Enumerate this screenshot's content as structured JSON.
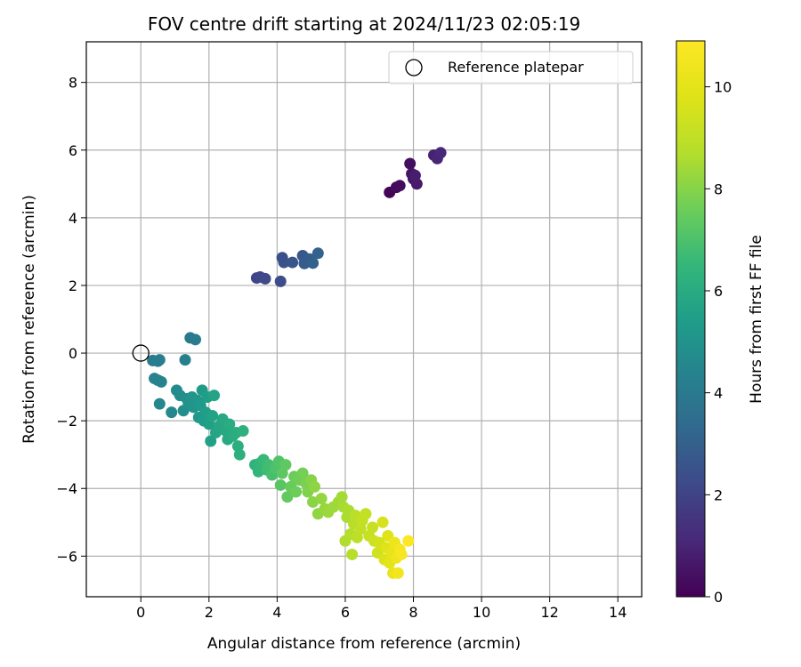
{
  "chart_data": {
    "type": "scatter",
    "title": "FOV centre drift starting at 2024/11/23 02:05:19",
    "xlabel": "Angular distance from reference (arcmin)",
    "ylabel": "Rotation from reference (arcmin)",
    "xlim": [
      -1.6,
      14.7
    ],
    "ylim": [
      -7.2,
      9.2
    ],
    "xticks": [
      0,
      2,
      4,
      6,
      8,
      10,
      12,
      14
    ],
    "yticks": [
      -6,
      -4,
      -2,
      0,
      2,
      4,
      6,
      8
    ],
    "xtick_labels": [
      "0",
      "2",
      "4",
      "6",
      "8",
      "10",
      "12",
      "14"
    ],
    "ytick_labels": [
      "−6",
      "−4",
      "−2",
      "0",
      "2",
      "4",
      "6",
      "8"
    ],
    "grid": true,
    "colormap": "viridis",
    "colorbar": {
      "label": "Hours from first FF file",
      "range": [
        0,
        10.9
      ],
      "ticks": [
        0,
        2,
        4,
        6,
        8,
        10
      ],
      "tick_labels": [
        "0",
        "2",
        "4",
        "6",
        "8",
        "10"
      ]
    },
    "legend": {
      "placement": "top-right",
      "label": "Reference platepar"
    },
    "reference_point": {
      "x": 0,
      "y": 0
    },
    "points": [
      {
        "x": 7.3,
        "y": 4.75,
        "h": 0.1
      },
      {
        "x": 7.5,
        "y": 4.9,
        "h": 0.2
      },
      {
        "x": 7.6,
        "y": 4.95,
        "h": 0.3
      },
      {
        "x": 7.9,
        "y": 5.6,
        "h": 0.4
      },
      {
        "x": 7.95,
        "y": 5.3,
        "h": 0.5
      },
      {
        "x": 8.0,
        "y": 5.15,
        "h": 0.6
      },
      {
        "x": 8.1,
        "y": 5.0,
        "h": 0.7
      },
      {
        "x": 8.05,
        "y": 5.25,
        "h": 0.8
      },
      {
        "x": 8.6,
        "y": 5.85,
        "h": 0.9
      },
      {
        "x": 8.7,
        "y": 5.75,
        "h": 1.0
      },
      {
        "x": 8.8,
        "y": 5.92,
        "h": 1.1
      },
      {
        "x": 3.4,
        "y": 2.22,
        "h": 2.0
      },
      {
        "x": 3.5,
        "y": 2.25,
        "h": 2.1
      },
      {
        "x": 3.65,
        "y": 2.2,
        "h": 2.2
      },
      {
        "x": 4.1,
        "y": 2.12,
        "h": 2.3
      },
      {
        "x": 4.15,
        "y": 2.82,
        "h": 2.4
      },
      {
        "x": 4.2,
        "y": 2.68,
        "h": 2.5
      },
      {
        "x": 4.45,
        "y": 2.68,
        "h": 2.6
      },
      {
        "x": 4.75,
        "y": 2.88,
        "h": 2.7
      },
      {
        "x": 4.8,
        "y": 2.65,
        "h": 2.8
      },
      {
        "x": 4.95,
        "y": 2.78,
        "h": 2.9
      },
      {
        "x": 5.05,
        "y": 2.66,
        "h": 3.0
      },
      {
        "x": 5.2,
        "y": 2.95,
        "h": 3.1
      },
      {
        "x": 1.45,
        "y": 0.45,
        "h": 4.0
      },
      {
        "x": 1.6,
        "y": 0.4,
        "h": 4.05
      },
      {
        "x": 0.35,
        "y": -0.22,
        "h": 4.1
      },
      {
        "x": 0.5,
        "y": -0.24,
        "h": 4.15
      },
      {
        "x": 0.55,
        "y": -0.2,
        "h": 4.2
      },
      {
        "x": 1.3,
        "y": -0.2,
        "h": 4.25
      },
      {
        "x": 0.4,
        "y": -0.75,
        "h": 4.3
      },
      {
        "x": 0.5,
        "y": -0.8,
        "h": 4.35
      },
      {
        "x": 0.6,
        "y": -0.85,
        "h": 4.4
      },
      {
        "x": 0.55,
        "y": -1.5,
        "h": 4.5
      },
      {
        "x": 0.9,
        "y": -1.75,
        "h": 4.6
      },
      {
        "x": 1.05,
        "y": -1.1,
        "h": 4.7
      },
      {
        "x": 1.15,
        "y": -1.25,
        "h": 4.8
      },
      {
        "x": 1.25,
        "y": -1.7,
        "h": 4.85
      },
      {
        "x": 1.35,
        "y": -1.35,
        "h": 4.9
      },
      {
        "x": 1.4,
        "y": -1.5,
        "h": 5.0
      },
      {
        "x": 1.5,
        "y": -1.3,
        "h": 5.05
      },
      {
        "x": 1.55,
        "y": -1.6,
        "h": 5.1
      },
      {
        "x": 1.65,
        "y": -1.4,
        "h": 5.15
      },
      {
        "x": 1.7,
        "y": -1.9,
        "h": 5.2
      },
      {
        "x": 1.75,
        "y": -1.55,
        "h": 5.3
      },
      {
        "x": 1.8,
        "y": -1.1,
        "h": 5.35
      },
      {
        "x": 1.85,
        "y": -2.0,
        "h": 5.4
      },
      {
        "x": 1.9,
        "y": -1.75,
        "h": 5.45
      },
      {
        "x": 1.95,
        "y": -1.3,
        "h": 5.5
      },
      {
        "x": 2.0,
        "y": -2.1,
        "h": 5.55
      },
      {
        "x": 2.05,
        "y": -2.6,
        "h": 5.6
      },
      {
        "x": 2.1,
        "y": -1.85,
        "h": 5.65
      },
      {
        "x": 2.15,
        "y": -1.25,
        "h": 5.7
      },
      {
        "x": 2.2,
        "y": -2.35,
        "h": 5.75
      },
      {
        "x": 2.3,
        "y": -2.15,
        "h": 5.8
      },
      {
        "x": 2.4,
        "y": -1.95,
        "h": 5.85
      },
      {
        "x": 2.5,
        "y": -2.3,
        "h": 5.9
      },
      {
        "x": 2.55,
        "y": -2.55,
        "h": 5.95
      },
      {
        "x": 2.6,
        "y": -2.1,
        "h": 6.0
      },
      {
        "x": 2.7,
        "y": -2.45,
        "h": 6.05
      },
      {
        "x": 2.8,
        "y": -2.35,
        "h": 6.1
      },
      {
        "x": 2.85,
        "y": -2.75,
        "h": 6.15
      },
      {
        "x": 2.9,
        "y": -3.0,
        "h": 6.2
      },
      {
        "x": 3.0,
        "y": -2.3,
        "h": 6.25
      },
      {
        "x": 3.35,
        "y": -3.3,
        "h": 6.3
      },
      {
        "x": 3.45,
        "y": -3.5,
        "h": 6.4
      },
      {
        "x": 3.5,
        "y": -3.25,
        "h": 6.5
      },
      {
        "x": 3.6,
        "y": -3.15,
        "h": 6.6
      },
      {
        "x": 3.7,
        "y": -3.45,
        "h": 6.7
      },
      {
        "x": 3.75,
        "y": -3.3,
        "h": 6.8
      },
      {
        "x": 3.85,
        "y": -3.6,
        "h": 6.9
      },
      {
        "x": 3.95,
        "y": -3.4,
        "h": 7.0
      },
      {
        "x": 4.05,
        "y": -3.2,
        "h": 7.1
      },
      {
        "x": 4.1,
        "y": -3.9,
        "h": 7.2
      },
      {
        "x": 4.15,
        "y": -3.55,
        "h": 7.3
      },
      {
        "x": 4.25,
        "y": -3.3,
        "h": 7.35
      },
      {
        "x": 4.3,
        "y": -4.25,
        "h": 7.4
      },
      {
        "x": 4.4,
        "y": -3.95,
        "h": 7.5
      },
      {
        "x": 4.5,
        "y": -3.65,
        "h": 7.55
      },
      {
        "x": 4.55,
        "y": -4.1,
        "h": 7.6
      },
      {
        "x": 4.65,
        "y": -3.75,
        "h": 7.65
      },
      {
        "x": 4.75,
        "y": -3.55,
        "h": 7.7
      },
      {
        "x": 4.85,
        "y": -3.85,
        "h": 7.8
      },
      {
        "x": 4.9,
        "y": -4.1,
        "h": 7.9
      },
      {
        "x": 5.0,
        "y": -3.75,
        "h": 8.0
      },
      {
        "x": 5.05,
        "y": -4.4,
        "h": 8.05
      },
      {
        "x": 5.1,
        "y": -3.95,
        "h": 8.1
      },
      {
        "x": 5.2,
        "y": -4.75,
        "h": 8.15
      },
      {
        "x": 5.3,
        "y": -4.3,
        "h": 8.2
      },
      {
        "x": 5.4,
        "y": -4.6,
        "h": 8.25
      },
      {
        "x": 5.5,
        "y": -4.7,
        "h": 8.3
      },
      {
        "x": 5.65,
        "y": -4.55,
        "h": 8.35
      },
      {
        "x": 5.8,
        "y": -4.4,
        "h": 8.4
      },
      {
        "x": 5.9,
        "y": -4.25,
        "h": 8.45
      },
      {
        "x": 5.95,
        "y": -4.55,
        "h": 8.5
      },
      {
        "x": 6.05,
        "y": -4.85,
        "h": 8.55
      },
      {
        "x": 6.1,
        "y": -4.65,
        "h": 8.6
      },
      {
        "x": 6.0,
        "y": -5.55,
        "h": 8.65
      },
      {
        "x": 6.15,
        "y": -5.35,
        "h": 8.7
      },
      {
        "x": 6.2,
        "y": -5.95,
        "h": 8.75
      },
      {
        "x": 6.25,
        "y": -5.05,
        "h": 8.8
      },
      {
        "x": 6.3,
        "y": -4.8,
        "h": 8.85
      },
      {
        "x": 6.35,
        "y": -5.45,
        "h": 8.9
      },
      {
        "x": 6.45,
        "y": -5.2,
        "h": 9.0
      },
      {
        "x": 6.5,
        "y": -4.95,
        "h": 9.05
      },
      {
        "x": 6.6,
        "y": -4.75,
        "h": 9.1
      },
      {
        "x": 6.7,
        "y": -5.4,
        "h": 9.15
      },
      {
        "x": 6.8,
        "y": -5.15,
        "h": 9.2
      },
      {
        "x": 6.85,
        "y": -5.55,
        "h": 9.3
      },
      {
        "x": 6.95,
        "y": -5.9,
        "h": 9.4
      },
      {
        "x": 7.0,
        "y": -5.6,
        "h": 9.5
      },
      {
        "x": 7.1,
        "y": -5.0,
        "h": 9.6
      },
      {
        "x": 7.15,
        "y": -6.1,
        "h": 9.7
      },
      {
        "x": 7.2,
        "y": -5.75,
        "h": 9.8
      },
      {
        "x": 7.25,
        "y": -5.4,
        "h": 9.9
      },
      {
        "x": 7.3,
        "y": -6.2,
        "h": 10.0
      },
      {
        "x": 7.35,
        "y": -5.9,
        "h": 10.1
      },
      {
        "x": 7.4,
        "y": -6.5,
        "h": 10.2
      },
      {
        "x": 7.45,
        "y": -5.6,
        "h": 10.3
      },
      {
        "x": 7.5,
        "y": -6.05,
        "h": 10.4
      },
      {
        "x": 7.55,
        "y": -6.5,
        "h": 10.5
      },
      {
        "x": 7.6,
        "y": -5.8,
        "h": 10.6
      },
      {
        "x": 7.65,
        "y": -5.95,
        "h": 10.7
      },
      {
        "x": 7.85,
        "y": -5.55,
        "h": 10.85
      }
    ]
  }
}
